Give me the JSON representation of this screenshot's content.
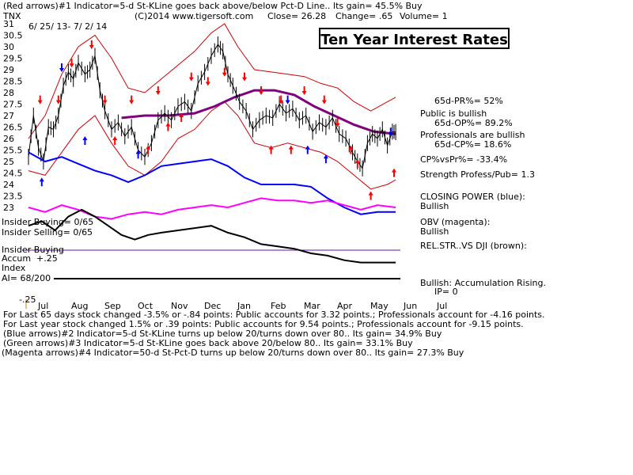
{
  "header": {
    "line1": "(Red arrows)#1 Indicator=5-d St-KLine goes back above/below Pct-D Line.. Its gain= 45.5% Buy",
    "symbol": "TNX",
    "copyright": "(C)2014 www.tigersoft.com",
    "close": "Close=  26.28",
    "change": "Change= .65",
    "volume": "Volume= 1",
    "date_range": "6/ 25/ 13- 7/ 2/ 14"
  },
  "title": "Ten Year Interest Rates",
  "right_panel": {
    "pr": "65d-PR%= 52%",
    "public": "Public is bullish",
    "op": "65d-OP%= 89.2%",
    "pros": "Professionals are bullish",
    "cp": "65d-CP%= 18.6%",
    "cpvspr": "CP%vsPr%= -33.4%",
    "strength": "Strength Profess/Pub= 1.3",
    "closing_power": "CLOSING POWER (blue):",
    "cp_state": "Bullish",
    "obv": "OBV (magenta):",
    "obv_state": "Bullish",
    "relstr": "REL.STR..VS DJI (brown):",
    "accum": "Bullish: Accumulation Rising.",
    "ip": "IP=  0"
  },
  "insider": {
    "buying": "Insider Buying= 0/65",
    "selling": "Insider Selling= 0/65",
    "label": "Insider Buying",
    "accum": "Accum",
    "index": "Index",
    "plus": "+.25",
    "ai": "AI= 68/200",
    "minus": "-.25"
  },
  "bottom": {
    "l1": "For Last 65 days stock changed -3.5% or -.84 points:  Public accounts for  3.32 points.;  Professionals account for -4.16 points.",
    "l2": "For Last year stock changed  1.5% or  .39 points:  Public accounts for  9.54 points.;  Professionals account for -9.15 points.",
    "l3": "(Blue arrows)#2 Indicator=5-d St-KLine turns up below 20/turns down over 80.. Its gain= 34.9% Buy",
    "l4": "(Green arrows)#3 Indicator=5-d St-KLine goes back above 20/below 80.. Its gain= 33.1% Buy",
    "l5": "(Magenta arrows)#4 Indicator=50-d St-Pct-D turns up below 20/turns down over 80.. Its gain= 27.3% Buy"
  },
  "chart_data": {
    "type": "line",
    "title": "Ten Year Interest Rates",
    "y_ticks": [
      "31",
      "30.5",
      "30",
      "29.5",
      "29",
      "28.5",
      "28",
      "27.5",
      "27",
      "26.5",
      "26",
      "25.5",
      "25",
      "24.5",
      "24",
      "23.5",
      "23"
    ],
    "ylim": [
      23,
      31
    ],
    "x_ticks": [
      "Jul",
      "Aug",
      "Sep",
      "Oct",
      "Nov",
      "Dec",
      "Jan",
      "Feb",
      "Mar",
      "Apr",
      "May",
      "Jun",
      "Jul"
    ],
    "colors": {
      "price": "#000000",
      "bands": "#cc0000",
      "ma": "#800080",
      "closing_power": "#0000ff",
      "obv": "#ff00ff",
      "relstr": "#000000",
      "arrow_red": "#ff0000",
      "arrow_blue": "#0000ff"
    },
    "price_close": [
      {
        "m": 0.0,
        "v": 25.2
      },
      {
        "m": 0.15,
        "v": 27.0
      },
      {
        "m": 0.3,
        "v": 25.6
      },
      {
        "m": 0.45,
        "v": 25.0
      },
      {
        "m": 0.6,
        "v": 26.5
      },
      {
        "m": 0.75,
        "v": 26.4
      },
      {
        "m": 0.9,
        "v": 27.0
      },
      {
        "m": 1.05,
        "v": 28.3
      },
      {
        "m": 1.2,
        "v": 28.9
      },
      {
        "m": 1.35,
        "v": 28.6
      },
      {
        "m": 1.5,
        "v": 29.3
      },
      {
        "m": 1.7,
        "v": 28.8
      },
      {
        "m": 1.85,
        "v": 29.0
      },
      {
        "m": 2.0,
        "v": 29.6
      },
      {
        "m": 2.15,
        "v": 28.1
      },
      {
        "m": 2.3,
        "v": 27.2
      },
      {
        "m": 2.5,
        "v": 26.4
      },
      {
        "m": 2.7,
        "v": 26.7
      },
      {
        "m": 2.9,
        "v": 26.1
      },
      {
        "m": 3.1,
        "v": 26.5
      },
      {
        "m": 3.3,
        "v": 25.5
      },
      {
        "m": 3.5,
        "v": 25.2
      },
      {
        "m": 3.7,
        "v": 25.8
      },
      {
        "m": 3.9,
        "v": 26.8
      },
      {
        "m": 4.1,
        "v": 27.1
      },
      {
        "m": 4.3,
        "v": 26.8
      },
      {
        "m": 4.5,
        "v": 27.4
      },
      {
        "m": 4.7,
        "v": 27.6
      },
      {
        "m": 4.9,
        "v": 27.2
      },
      {
        "m": 5.1,
        "v": 28.4
      },
      {
        "m": 5.3,
        "v": 28.9
      },
      {
        "m": 5.5,
        "v": 29.6
      },
      {
        "m": 5.7,
        "v": 30.1
      },
      {
        "m": 5.85,
        "v": 29.8
      },
      {
        "m": 6.0,
        "v": 28.8
      },
      {
        "m": 6.15,
        "v": 28.3
      },
      {
        "m": 6.35,
        "v": 27.6
      },
      {
        "m": 6.55,
        "v": 27.2
      },
      {
        "m": 6.75,
        "v": 26.4
      },
      {
        "m": 6.95,
        "v": 26.8
      },
      {
        "m": 7.15,
        "v": 27.0
      },
      {
        "m": 7.35,
        "v": 26.9
      },
      {
        "m": 7.55,
        "v": 27.5
      },
      {
        "m": 7.75,
        "v": 27.1
      },
      {
        "m": 7.95,
        "v": 27.3
      },
      {
        "m": 8.15,
        "v": 26.8
      },
      {
        "m": 8.35,
        "v": 27.0
      },
      {
        "m": 8.55,
        "v": 26.3
      },
      {
        "m": 8.75,
        "v": 26.7
      },
      {
        "m": 8.95,
        "v": 26.5
      },
      {
        "m": 9.15,
        "v": 26.9
      },
      {
        "m": 9.35,
        "v": 26.2
      },
      {
        "m": 9.55,
        "v": 26.0
      },
      {
        "m": 9.75,
        "v": 25.4
      },
      {
        "m": 9.9,
        "v": 25.0
      },
      {
        "m": 10.05,
        "v": 24.7
      },
      {
        "m": 10.2,
        "v": 25.8
      },
      {
        "m": 10.35,
        "v": 26.2
      },
      {
        "m": 10.5,
        "v": 26.0
      },
      {
        "m": 10.65,
        "v": 26.4
      },
      {
        "m": 10.8,
        "v": 25.7
      },
      {
        "m": 10.95,
        "v": 26.3
      },
      {
        "m": 11.05,
        "v": 26.28
      }
    ],
    "upper_band": [
      {
        "m": 0.0,
        "v": 26.0
      },
      {
        "m": 0.5,
        "v": 27.0
      },
      {
        "m": 1.0,
        "v": 28.8
      },
      {
        "m": 1.5,
        "v": 30.0
      },
      {
        "m": 2.0,
        "v": 30.5
      },
      {
        "m": 2.5,
        "v": 29.5
      },
      {
        "m": 3.0,
        "v": 28.2
      },
      {
        "m": 3.5,
        "v": 28.0
      },
      {
        "m": 4.0,
        "v": 28.6
      },
      {
        "m": 4.5,
        "v": 29.2
      },
      {
        "m": 5.0,
        "v": 29.8
      },
      {
        "m": 5.5,
        "v": 30.6
      },
      {
        "m": 5.9,
        "v": 31.0
      },
      {
        "m": 6.3,
        "v": 30.0
      },
      {
        "m": 6.8,
        "v": 29.0
      },
      {
        "m": 7.3,
        "v": 28.9
      },
      {
        "m": 7.8,
        "v": 28.8
      },
      {
        "m": 8.3,
        "v": 28.7
      },
      {
        "m": 8.8,
        "v": 28.4
      },
      {
        "m": 9.3,
        "v": 28.2
      },
      {
        "m": 9.8,
        "v": 27.6
      },
      {
        "m": 10.3,
        "v": 27.2
      },
      {
        "m": 10.8,
        "v": 27.6
      },
      {
        "m": 11.05,
        "v": 27.8
      }
    ],
    "lower_band": [
      {
        "m": 0.0,
        "v": 24.6
      },
      {
        "m": 0.5,
        "v": 24.4
      },
      {
        "m": 1.0,
        "v": 25.4
      },
      {
        "m": 1.5,
        "v": 26.4
      },
      {
        "m": 2.0,
        "v": 27.0
      },
      {
        "m": 2.5,
        "v": 25.8
      },
      {
        "m": 3.0,
        "v": 24.8
      },
      {
        "m": 3.5,
        "v": 24.4
      },
      {
        "m": 4.0,
        "v": 25.0
      },
      {
        "m": 4.5,
        "v": 26.0
      },
      {
        "m": 5.0,
        "v": 26.4
      },
      {
        "m": 5.5,
        "v": 27.2
      },
      {
        "m": 5.9,
        "v": 27.6
      },
      {
        "m": 6.3,
        "v": 27.0
      },
      {
        "m": 6.8,
        "v": 25.8
      },
      {
        "m": 7.3,
        "v": 25.6
      },
      {
        "m": 7.8,
        "v": 25.8
      },
      {
        "m": 8.3,
        "v": 25.6
      },
      {
        "m": 8.8,
        "v": 25.4
      },
      {
        "m": 9.3,
        "v": 25.0
      },
      {
        "m": 9.8,
        "v": 24.4
      },
      {
        "m": 10.3,
        "v": 23.8
      },
      {
        "m": 10.8,
        "v": 24.0
      },
      {
        "m": 11.05,
        "v": 24.2
      }
    ],
    "moving_average": [
      {
        "m": 2.8,
        "v": 26.9
      },
      {
        "m": 3.5,
        "v": 27.0
      },
      {
        "m": 4.2,
        "v": 27.0
      },
      {
        "m": 5.0,
        "v": 27.1
      },
      {
        "m": 5.6,
        "v": 27.4
      },
      {
        "m": 6.2,
        "v": 27.8
      },
      {
        "m": 6.8,
        "v": 28.1
      },
      {
        "m": 7.4,
        "v": 28.1
      },
      {
        "m": 8.0,
        "v": 27.9
      },
      {
        "m": 8.6,
        "v": 27.4
      },
      {
        "m": 9.2,
        "v": 27.0
      },
      {
        "m": 9.8,
        "v": 26.6
      },
      {
        "m": 10.4,
        "v": 26.3
      },
      {
        "m": 11.05,
        "v": 26.2
      }
    ],
    "closing_power": [
      {
        "m": 0.0,
        "v": 25.4
      },
      {
        "m": 0.5,
        "v": 25.0
      },
      {
        "m": 1.0,
        "v": 25.2
      },
      {
        "m": 1.5,
        "v": 24.9
      },
      {
        "m": 2.0,
        "v": 24.6
      },
      {
        "m": 2.5,
        "v": 24.4
      },
      {
        "m": 3.0,
        "v": 24.1
      },
      {
        "m": 3.5,
        "v": 24.4
      },
      {
        "m": 4.0,
        "v": 24.8
      },
      {
        "m": 4.5,
        "v": 24.9
      },
      {
        "m": 5.0,
        "v": 25.0
      },
      {
        "m": 5.5,
        "v": 25.1
      },
      {
        "m": 6.0,
        "v": 24.8
      },
      {
        "m": 6.5,
        "v": 24.3
      },
      {
        "m": 7.0,
        "v": 24.0
      },
      {
        "m": 7.5,
        "v": 24.0
      },
      {
        "m": 8.0,
        "v": 24.0
      },
      {
        "m": 8.5,
        "v": 23.9
      },
      {
        "m": 9.0,
        "v": 23.4
      },
      {
        "m": 9.5,
        "v": 23.0
      },
      {
        "m": 10.0,
        "v": 22.7
      },
      {
        "m": 10.5,
        "v": 22.8
      },
      {
        "m": 11.05,
        "v": 22.8
      }
    ],
    "obv": [
      {
        "m": 0.0,
        "v": 23.0
      },
      {
        "m": 0.5,
        "v": 22.8
      },
      {
        "m": 1.0,
        "v": 23.1
      },
      {
        "m": 1.5,
        "v": 22.9
      },
      {
        "m": 2.0,
        "v": 22.6
      },
      {
        "m": 2.5,
        "v": 22.5
      },
      {
        "m": 3.0,
        "v": 22.7
      },
      {
        "m": 3.5,
        "v": 22.8
      },
      {
        "m": 4.0,
        "v": 22.7
      },
      {
        "m": 4.5,
        "v": 22.9
      },
      {
        "m": 5.0,
        "v": 23.0
      },
      {
        "m": 5.5,
        "v": 23.1
      },
      {
        "m": 6.0,
        "v": 23.0
      },
      {
        "m": 6.5,
        "v": 23.2
      },
      {
        "m": 7.0,
        "v": 23.4
      },
      {
        "m": 7.5,
        "v": 23.3
      },
      {
        "m": 8.0,
        "v": 23.3
      },
      {
        "m": 8.5,
        "v": 23.2
      },
      {
        "m": 9.0,
        "v": 23.3
      },
      {
        "m": 9.5,
        "v": 23.1
      },
      {
        "m": 10.0,
        "v": 22.9
      },
      {
        "m": 10.5,
        "v": 23.1
      },
      {
        "m": 11.05,
        "v": 23.0
      }
    ],
    "relstr": [
      {
        "m": 0.0,
        "v": 22.2
      },
      {
        "m": 0.4,
        "v": 22.4
      },
      {
        "m": 0.8,
        "v": 22.0
      },
      {
        "m": 1.2,
        "v": 22.6
      },
      {
        "m": 1.6,
        "v": 22.9
      },
      {
        "m": 2.0,
        "v": 22.6
      },
      {
        "m": 2.4,
        "v": 22.2
      },
      {
        "m": 2.8,
        "v": 21.8
      },
      {
        "m": 3.2,
        "v": 21.6
      },
      {
        "m": 3.6,
        "v": 21.8
      },
      {
        "m": 4.0,
        "v": 21.9
      },
      {
        "m": 4.5,
        "v": 22.0
      },
      {
        "m": 5.0,
        "v": 22.1
      },
      {
        "m": 5.5,
        "v": 22.2
      },
      {
        "m": 6.0,
        "v": 21.9
      },
      {
        "m": 6.5,
        "v": 21.7
      },
      {
        "m": 7.0,
        "v": 21.4
      },
      {
        "m": 7.5,
        "v": 21.3
      },
      {
        "m": 8.0,
        "v": 21.2
      },
      {
        "m": 8.5,
        "v": 21.0
      },
      {
        "m": 9.0,
        "v": 20.9
      },
      {
        "m": 9.5,
        "v": 20.7
      },
      {
        "m": 10.0,
        "v": 20.6
      },
      {
        "m": 10.5,
        "v": 20.6
      },
      {
        "m": 11.05,
        "v": 20.6
      }
    ],
    "red_arrows": [
      {
        "m": 0.35,
        "v": 27.6,
        "dir": "down"
      },
      {
        "m": 0.9,
        "v": 27.6,
        "dir": "down"
      },
      {
        "m": 1.3,
        "v": 29.2,
        "dir": "down"
      },
      {
        "m": 1.9,
        "v": 30.0,
        "dir": "down"
      },
      {
        "m": 2.3,
        "v": 27.6,
        "dir": "down"
      },
      {
        "m": 2.6,
        "v": 26.0,
        "dir": "up"
      },
      {
        "m": 3.1,
        "v": 27.6,
        "dir": "down"
      },
      {
        "m": 3.6,
        "v": 25.6,
        "dir": "up"
      },
      {
        "m": 3.9,
        "v": 28.0,
        "dir": "down"
      },
      {
        "m": 4.2,
        "v": 26.6,
        "dir": "up"
      },
      {
        "m": 4.6,
        "v": 27.0,
        "dir": "up"
      },
      {
        "m": 4.9,
        "v": 28.6,
        "dir": "down"
      },
      {
        "m": 5.4,
        "v": 28.4,
        "dir": "down"
      },
      {
        "m": 5.9,
        "v": 28.8,
        "dir": "down"
      },
      {
        "m": 6.5,
        "v": 28.6,
        "dir": "down"
      },
      {
        "m": 7.0,
        "v": 28.0,
        "dir": "down"
      },
      {
        "m": 7.3,
        "v": 25.6,
        "dir": "up"
      },
      {
        "m": 7.6,
        "v": 27.6,
        "dir": "down"
      },
      {
        "m": 7.9,
        "v": 25.6,
        "dir": "up"
      },
      {
        "m": 8.3,
        "v": 28.0,
        "dir": "down"
      },
      {
        "m": 8.9,
        "v": 27.6,
        "dir": "down"
      },
      {
        "m": 9.3,
        "v": 26.6,
        "dir": "down"
      },
      {
        "m": 9.7,
        "v": 25.6,
        "dir": "up"
      },
      {
        "m": 9.9,
        "v": 25.0,
        "dir": "up"
      },
      {
        "m": 10.3,
        "v": 23.6,
        "dir": "up"
      },
      {
        "m": 11.0,
        "v": 24.6,
        "dir": "up"
      }
    ],
    "blue_arrows": [
      {
        "m": 0.4,
        "v": 24.2,
        "dir": "up"
      },
      {
        "m": 1.0,
        "v": 29.0,
        "dir": "down"
      },
      {
        "m": 1.7,
        "v": 26.0,
        "dir": "up"
      },
      {
        "m": 3.3,
        "v": 25.4,
        "dir": "up"
      },
      {
        "m": 7.8,
        "v": 27.6,
        "dir": "down"
      },
      {
        "m": 8.4,
        "v": 25.6,
        "dir": "up"
      },
      {
        "m": 8.95,
        "v": 25.2,
        "dir": "up"
      },
      {
        "m": 10.9,
        "v": 26.2,
        "dir": "down"
      }
    ]
  }
}
